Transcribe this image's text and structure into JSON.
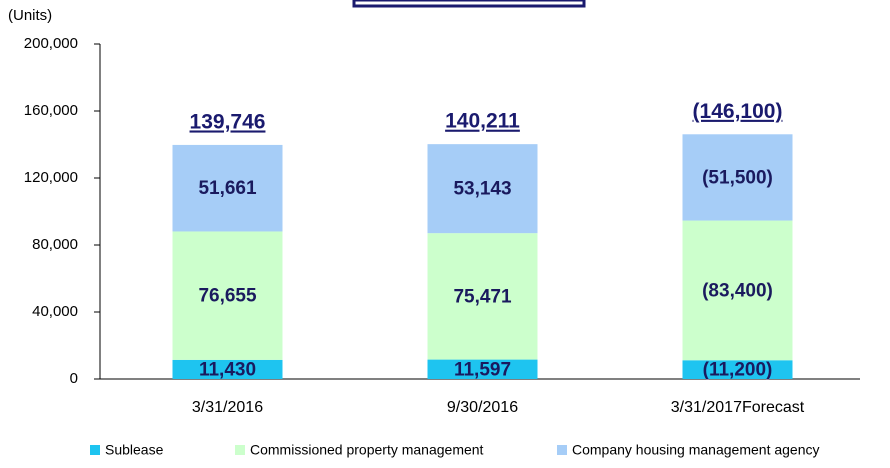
{
  "chart_data": {
    "type": "stacked-bar",
    "y_axis_label": "(Units)",
    "categories": [
      "3/31/2016",
      "9/30/2016",
      "3/31/2017Forecast"
    ],
    "series": [
      {
        "name": "Sublease",
        "color": "#1ec4f0",
        "values": [
          11430,
          11597,
          11200
        ],
        "value_labels": [
          "11,430",
          "11,597",
          "(11,200)"
        ]
      },
      {
        "name": "Commissioned property management",
        "color": "#ccffcc",
        "values": [
          76655,
          75471,
          83400
        ],
        "value_labels": [
          "76,655",
          "75,471",
          "(83,400)"
        ]
      },
      {
        "name": "Company housing management agency",
        "color": "#a6cdf7",
        "values": [
          51661,
          53143,
          51500
        ],
        "value_labels": [
          "51,661",
          "53,143",
          "(51,500)"
        ]
      }
    ],
    "totals": {
      "values": [
        139746,
        140211,
        146100
      ],
      "value_labels": [
        "139,746",
        "140,211",
        "(146,100)"
      ]
    },
    "ylim": [
      0,
      200000
    ],
    "yticks": [
      0,
      {
        "value": 40000,
        "label": "40,000"
      },
      {
        "value": 80000,
        "label": "80,000"
      },
      {
        "value": 120000,
        "label": "120,000"
      },
      {
        "value": 160000,
        "label": "160,000"
      },
      {
        "value": 200000,
        "label": "200,000"
      }
    ],
    "legend": "bottom"
  }
}
